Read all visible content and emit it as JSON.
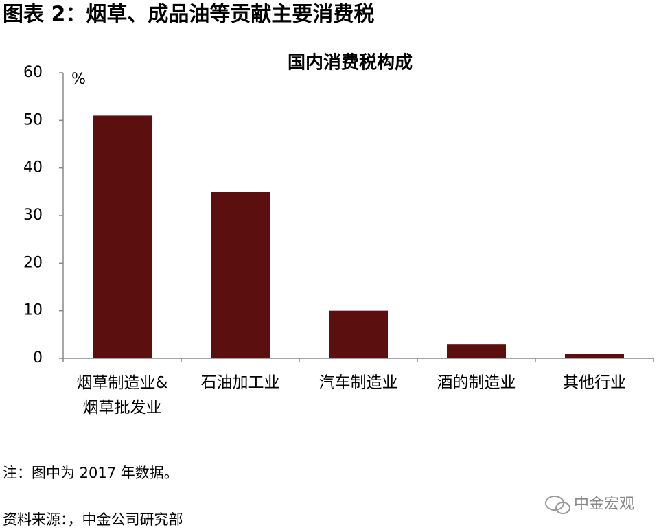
{
  "chart_data": {
    "type": "bar",
    "title": "图表 2：烟草、成品油等贡献主要消费税",
    "subtitle": "国内消费税构成",
    "ylabel": "%",
    "categories": [
      "烟草制造业&\n烟草批发业",
      "石油加工业",
      "汽车制造业",
      "酒的制造业",
      "其他行业"
    ],
    "values": [
      51,
      35,
      10,
      3,
      1
    ],
    "color": "#5c0f0f",
    "ylim": [
      0,
      60
    ],
    "yticks": [
      0,
      10,
      20,
      30,
      40,
      50,
      60
    ],
    "grid": false,
    "note": "注：图中为 2017 年数据。",
    "source": "资料来源：，中金公司研究部",
    "watermark": "中金宏观"
  }
}
